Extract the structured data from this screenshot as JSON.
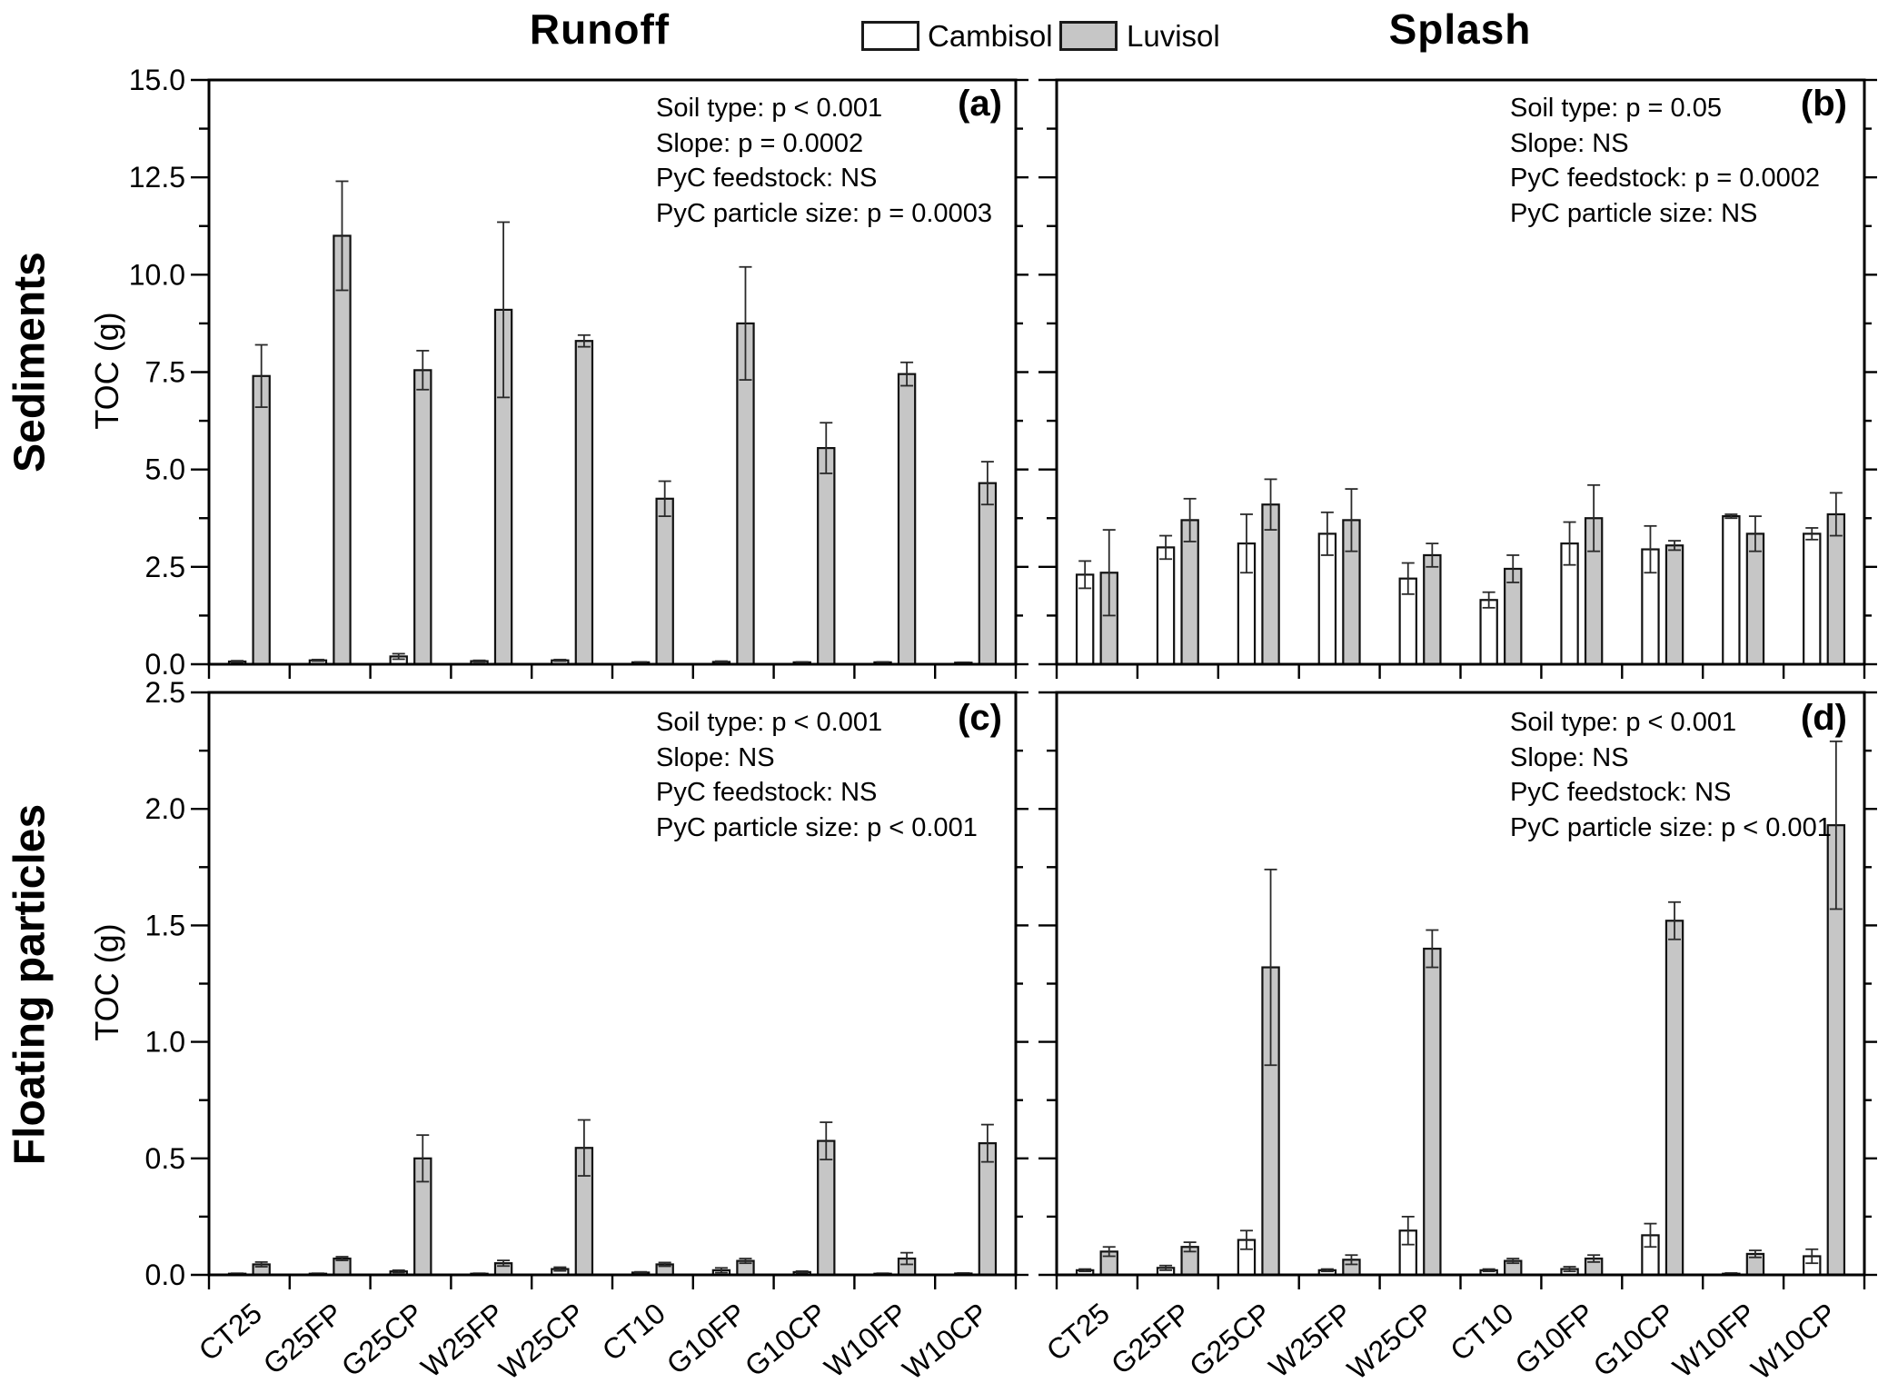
{
  "header": {
    "col_titles": [
      "Runoff",
      "Splash"
    ],
    "legend": [
      {
        "label": "Cambisol",
        "color": "#ffffff"
      },
      {
        "label": "Luvisol",
        "color": "#c6c6c6"
      }
    ]
  },
  "row_labels": [
    "Sediments",
    "Floating particles"
  ],
  "y_axis_label": "TOC (g)",
  "colors": {
    "cambisol_fill": "#ffffff",
    "luvisol_fill": "#c6c6c6",
    "bar_border": "#111111",
    "error_bar": "#2a2a2a",
    "axis": "#000000"
  },
  "chart_data": {
    "type": "bar",
    "categories": [
      "CT25",
      "G25FP",
      "G25CP",
      "W25FP",
      "W25CP",
      "CT10",
      "G10FP",
      "G10CP",
      "W10FP",
      "W10CP"
    ],
    "legend_position": "top-center",
    "grid": false,
    "panels": [
      {
        "id": "a",
        "letter": "(a)",
        "row": "Sediments",
        "column": "Runoff",
        "ylabel": "TOC (g)",
        "ylim": [
          0,
          15
        ],
        "ytick_major": 2.5,
        "ytick_minor": 1.25,
        "stats": [
          "Soil type: p < 0.001",
          "Slope: p = 0.0002",
          "PyC feedstock: NS",
          "PyC particle size: p = 0.0003"
        ],
        "series": [
          {
            "name": "Cambisol",
            "values": [
              0.07,
              0.1,
              0.2,
              0.08,
              0.1,
              0.05,
              0.06,
              0.05,
              0.05,
              0.04
            ],
            "errors": [
              0.02,
              0.02,
              0.07,
              0.02,
              0.02,
              0.01,
              0.02,
              0.01,
              0.01,
              0.01
            ]
          },
          {
            "name": "Luvisol",
            "values": [
              7.4,
              11.0,
              7.55,
              9.1,
              8.3,
              4.25,
              8.75,
              5.55,
              7.45,
              4.65
            ],
            "errors": [
              0.8,
              1.4,
              0.5,
              2.25,
              0.15,
              0.45,
              1.45,
              0.65,
              0.3,
              0.55
            ]
          }
        ]
      },
      {
        "id": "b",
        "letter": "(b)",
        "row": "Sediments",
        "column": "Splash",
        "ylabel": "TOC (g)",
        "ylim": [
          0,
          15
        ],
        "ytick_major": 2.5,
        "ytick_minor": 1.25,
        "stats": [
          "Soil type: p = 0.05",
          "Slope: NS",
          "PyC feedstock: p = 0.0002",
          "PyC particle size: NS"
        ],
        "series": [
          {
            "name": "Cambisol",
            "values": [
              2.3,
              3.0,
              3.1,
              3.35,
              2.2,
              1.65,
              3.1,
              2.95,
              3.8,
              3.35
            ],
            "errors": [
              0.35,
              0.3,
              0.75,
              0.55,
              0.4,
              0.2,
              0.55,
              0.6,
              0.05,
              0.15
            ]
          },
          {
            "name": "Luvisol",
            "values": [
              2.35,
              3.7,
              4.1,
              3.7,
              2.8,
              2.45,
              3.75,
              3.05,
              3.35,
              3.85
            ],
            "errors": [
              1.1,
              0.55,
              0.65,
              0.8,
              0.3,
              0.35,
              0.85,
              0.12,
              0.45,
              0.55
            ]
          }
        ]
      },
      {
        "id": "c",
        "letter": "(c)",
        "row": "Floating particles",
        "column": "Runoff",
        "ylabel": "TOC (g)",
        "ylim": [
          0,
          2.5
        ],
        "ytick_major": 0.5,
        "ytick_minor": 0.25,
        "stats": [
          "Soil type: p < 0.001",
          "Slope: NS",
          "PyC feedstock: NS",
          "PyC particle size: p < 0.001"
        ],
        "series": [
          {
            "name": "Cambisol",
            "values": [
              0.005,
              0.005,
              0.015,
              0.005,
              0.025,
              0.01,
              0.02,
              0.012,
              0.005,
              0.006
            ],
            "errors": [
              0.002,
              0.002,
              0.005,
              0.002,
              0.008,
              0.003,
              0.01,
              0.004,
              0.002,
              0.002
            ]
          },
          {
            "name": "Luvisol",
            "values": [
              0.045,
              0.07,
              0.5,
              0.05,
              0.545,
              0.045,
              0.06,
              0.575,
              0.07,
              0.565
            ],
            "errors": [
              0.01,
              0.008,
              0.1,
              0.012,
              0.12,
              0.008,
              0.01,
              0.08,
              0.025,
              0.08
            ]
          }
        ]
      },
      {
        "id": "d",
        "letter": "(d)",
        "row": "Floating particles",
        "column": "Splash",
        "ylabel": "TOC (g)",
        "ylim": [
          0,
          2.5
        ],
        "ytick_major": 0.5,
        "ytick_minor": 0.25,
        "stats": [
          "Soil type: p < 0.001",
          "Slope: NS",
          "PyC feedstock: NS",
          "PyC particle size: p < 0.001"
        ],
        "series": [
          {
            "name": "Cambisol",
            "values": [
              0.02,
              0.03,
              0.15,
              0.02,
              0.19,
              0.02,
              0.025,
              0.17,
              0.005,
              0.08
            ],
            "errors": [
              0.005,
              0.01,
              0.04,
              0.005,
              0.06,
              0.005,
              0.01,
              0.05,
              0.003,
              0.03
            ]
          },
          {
            "name": "Luvisol",
            "values": [
              0.1,
              0.12,
              1.32,
              0.065,
              1.4,
              0.06,
              0.07,
              1.52,
              0.09,
              1.93
            ],
            "errors": [
              0.02,
              0.02,
              0.42,
              0.02,
              0.08,
              0.01,
              0.015,
              0.08,
              0.015,
              0.36
            ]
          }
        ]
      }
    ]
  }
}
